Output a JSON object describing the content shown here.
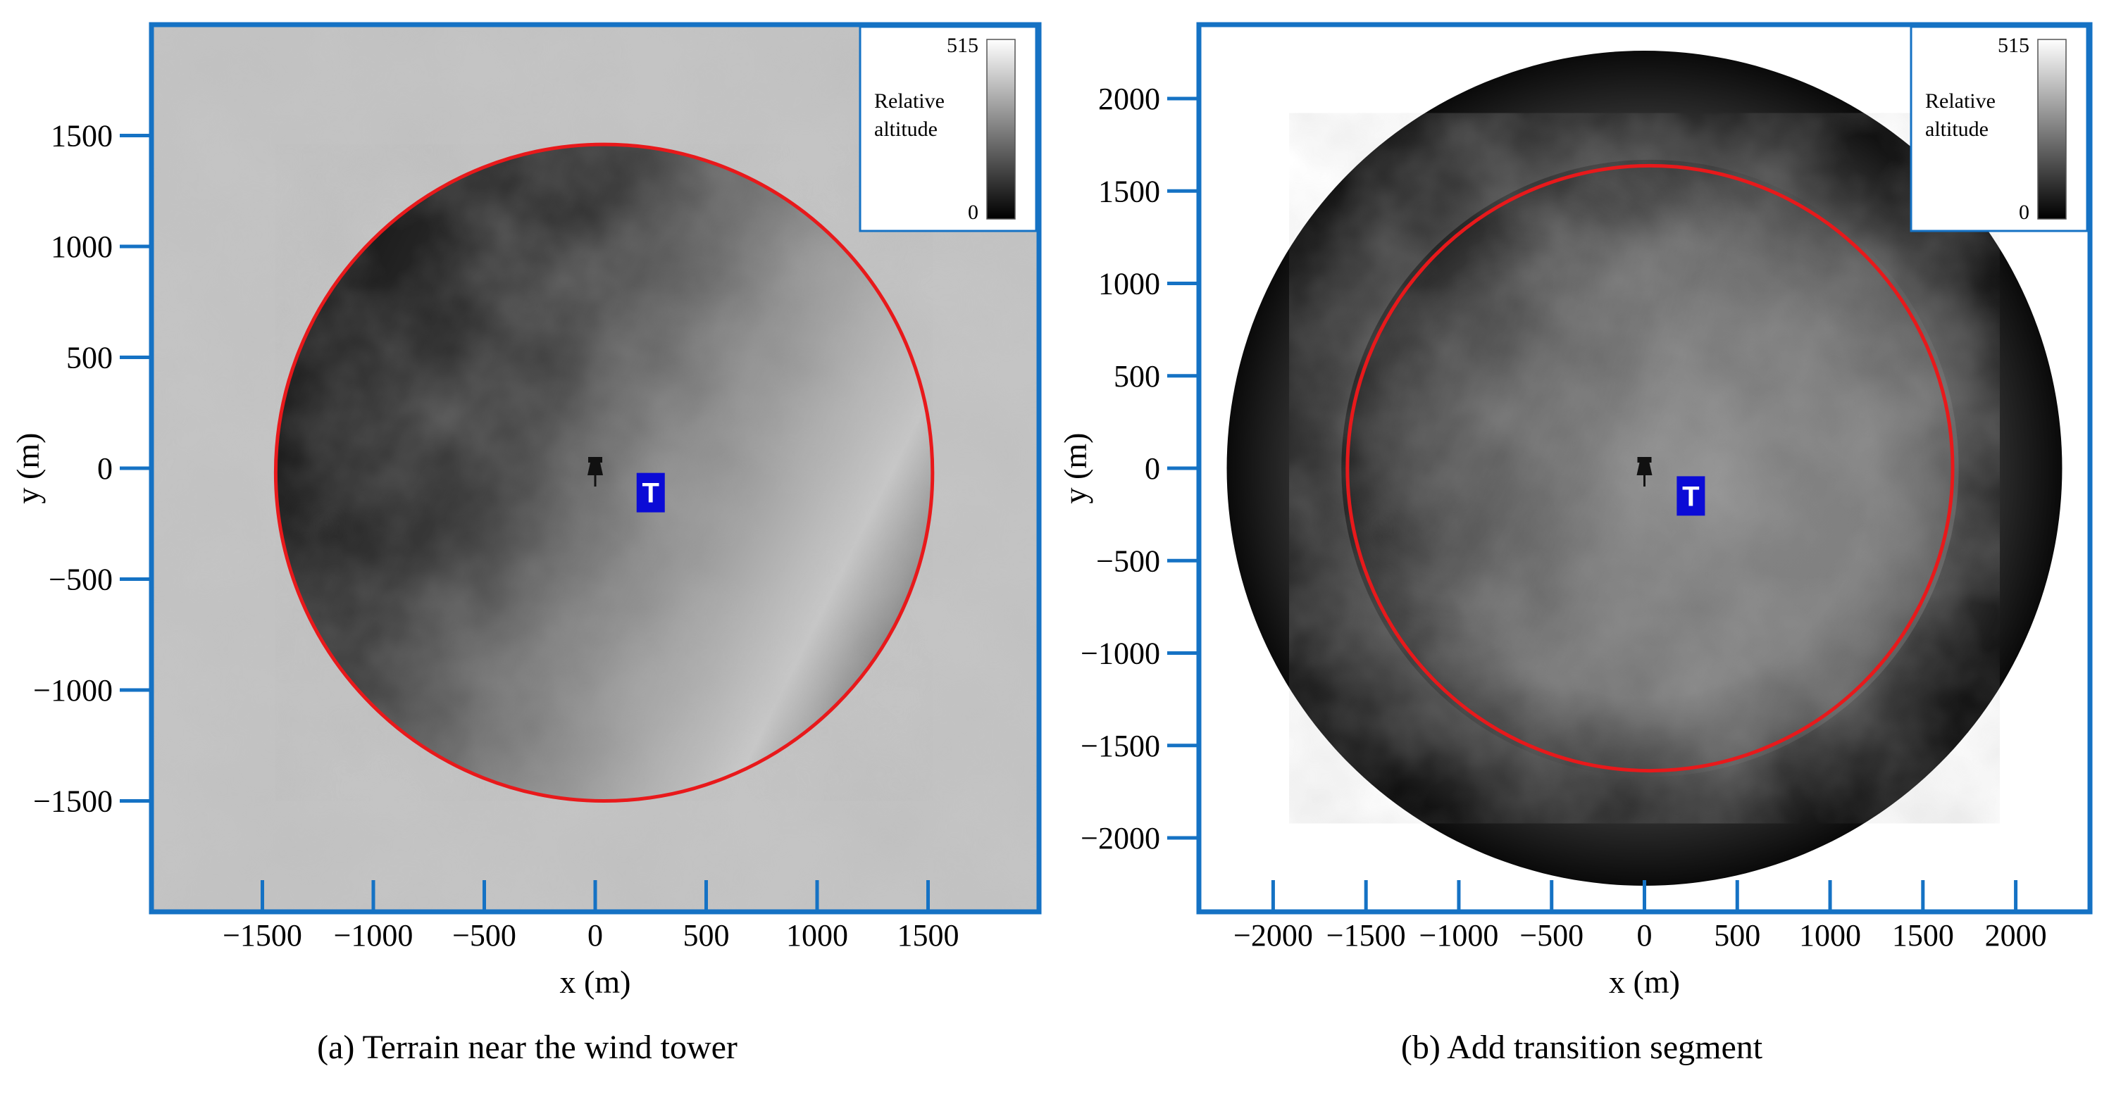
{
  "chart_data": [
    {
      "type": "heatmap",
      "caption": "(a) Terrain near the wind tower",
      "xlabel": "x (m)",
      "ylabel": "y (m)",
      "xlim": [
        -2000,
        2000
      ],
      "ylim": [
        -2000,
        2000
      ],
      "xticks": [
        -1500,
        -1000,
        -500,
        0,
        500,
        1000,
        1500
      ],
      "yticks": [
        1500,
        1000,
        500,
        0,
        -500,
        -1000,
        -1500
      ],
      "xtick_labels": [
        "−1500",
        "−1000",
        "−500",
        "0",
        "500",
        "1000",
        "1500"
      ],
      "ytick_labels": [
        "1500",
        "1000",
        "500",
        "0",
        "−500",
        "−1000",
        "−1500"
      ],
      "colorbar": {
        "label_line1": "Relative",
        "label_line2": "altitude",
        "max": "515",
        "min": "0"
      },
      "circle": {
        "center": [
          40,
          -20
        ],
        "radius": 1480,
        "color": "#e8191b"
      },
      "tower_marker": {
        "x": 0,
        "y": 0,
        "icon": "pushpin-icon"
      },
      "t_marker": {
        "x": 250,
        "y": -110,
        "label": "T"
      },
      "frame_color": "#1572c4"
    },
    {
      "type": "heatmap",
      "caption": "(b) Add transition segment",
      "xlabel": "x (m)",
      "ylabel": "y (m)",
      "xlim": [
        -2400,
        2400
      ],
      "ylim": [
        -2400,
        2400
      ],
      "xticks": [
        -2000,
        -1500,
        -1000,
        -500,
        0,
        500,
        1000,
        1500,
        2000
      ],
      "yticks": [
        2000,
        1500,
        1000,
        500,
        0,
        -500,
        -1000,
        -1500,
        -2000
      ],
      "xtick_labels": [
        "−2000",
        "−1500",
        "−1000",
        "−500",
        "0",
        "500",
        "1000",
        "1500",
        "2000"
      ],
      "ytick_labels": [
        "2000",
        "1500",
        "1000",
        "500",
        "0",
        "−500",
        "−1000",
        "−1500",
        "−2000"
      ],
      "colorbar": {
        "label_line1": "Relative",
        "label_line2": "altitude",
        "max": "515",
        "min": "0"
      },
      "circle": {
        "center": [
          30,
          0
        ],
        "radius": 1630,
        "color": "#e8191b"
      },
      "outer_disk": {
        "center": [
          0,
          0
        ],
        "radius": 2250
      },
      "tower_marker": {
        "x": 0,
        "y": 0,
        "icon": "pushpin-icon"
      },
      "t_marker": {
        "x": 250,
        "y": -150,
        "label": "T"
      },
      "frame_color": "#1572c4"
    }
  ]
}
